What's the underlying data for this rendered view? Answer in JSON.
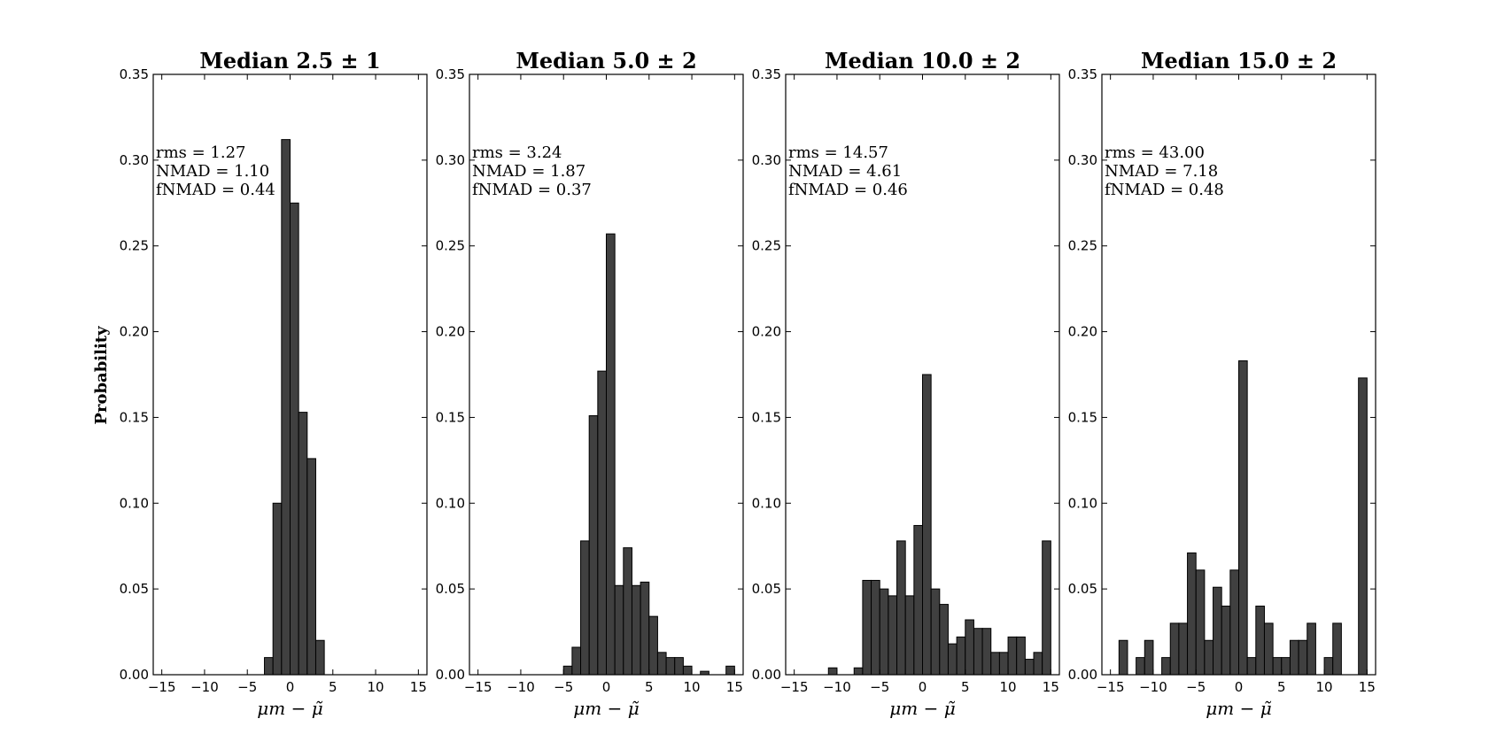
{
  "chart_data": {
    "type": "bar",
    "ylabel": "Probability",
    "xlabel": "μm − μ̃",
    "xlim": [
      -16,
      16
    ],
    "ylim": [
      0,
      0.35
    ],
    "xticks": [
      -15,
      -10,
      -5,
      0,
      5,
      10,
      15
    ],
    "xtick_labels": [
      "−15",
      "−10",
      "−5",
      "0",
      "5",
      "10",
      "15"
    ],
    "yticks": [
      0,
      0.05,
      0.1,
      0.15,
      0.2,
      0.25,
      0.3,
      0.35
    ],
    "ytick_labels": [
      "0.00",
      "0.05",
      "0.10",
      "0.15",
      "0.20",
      "0.25",
      "0.30",
      "0.35"
    ],
    "bar_color": "#404040",
    "bin_width": 1,
    "panels": [
      {
        "title": "Median 2.5 ± 1",
        "stats": [
          "rms = 1.27",
          "NMAD = 1.10",
          "fNMAD = 0.44"
        ],
        "bins": [
          [
            -3,
            0.01
          ],
          [
            -2,
            0.1
          ],
          [
            -1,
            0.312
          ],
          [
            0,
            0.275
          ],
          [
            1,
            0.153
          ],
          [
            2,
            0.126
          ],
          [
            3,
            0.02
          ]
        ]
      },
      {
        "title": "Median 5.0 ± 2",
        "stats": [
          "rms = 3.24",
          "NMAD = 1.87",
          "fNMAD = 0.37"
        ],
        "bins": [
          [
            -5,
            0.005
          ],
          [
            -4,
            0.016
          ],
          [
            -3,
            0.078
          ],
          [
            -2,
            0.151
          ],
          [
            -1,
            0.177
          ],
          [
            0,
            0.257
          ],
          [
            1,
            0.052
          ],
          [
            2,
            0.074
          ],
          [
            3,
            0.052
          ],
          [
            4,
            0.054
          ],
          [
            5,
            0.034
          ],
          [
            6,
            0.013
          ],
          [
            7,
            0.01
          ],
          [
            8,
            0.01
          ],
          [
            9,
            0.005
          ],
          [
            11,
            0.002
          ],
          [
            14,
            0.005
          ]
        ]
      },
      {
        "title": "Median 10.0 ± 2",
        "stats": [
          "rms = 14.57",
          "NMAD = 4.61",
          "fNMAD = 0.46"
        ],
        "bins": [
          [
            -11,
            0.004
          ],
          [
            -8,
            0.004
          ],
          [
            -7,
            0.055
          ],
          [
            -6,
            0.055
          ],
          [
            -5,
            0.05
          ],
          [
            -4,
            0.046
          ],
          [
            -3,
            0.078
          ],
          [
            -2,
            0.046
          ],
          [
            -1,
            0.087
          ],
          [
            0,
            0.175
          ],
          [
            1,
            0.05
          ],
          [
            2,
            0.041
          ],
          [
            3,
            0.018
          ],
          [
            4,
            0.022
          ],
          [
            5,
            0.032
          ],
          [
            6,
            0.027
          ],
          [
            7,
            0.027
          ],
          [
            8,
            0.013
          ],
          [
            9,
            0.013
          ],
          [
            10,
            0.022
          ],
          [
            11,
            0.022
          ],
          [
            12,
            0.009
          ],
          [
            13,
            0.013
          ],
          [
            14,
            0.078
          ]
        ]
      },
      {
        "title": "Median 15.0 ± 2",
        "stats": [
          "rms = 43.00",
          "NMAD = 7.18",
          "fNMAD = 0.48"
        ],
        "bins": [
          [
            -14,
            0.02
          ],
          [
            -12,
            0.01
          ],
          [
            -11,
            0.02
          ],
          [
            -9,
            0.01
          ],
          [
            -8,
            0.03
          ],
          [
            -7,
            0.03
          ],
          [
            -6,
            0.071
          ],
          [
            -5,
            0.061
          ],
          [
            -4,
            0.02
          ],
          [
            -3,
            0.051
          ],
          [
            -2,
            0.04
          ],
          [
            -1,
            0.061
          ],
          [
            0,
            0.183
          ],
          [
            1,
            0.01
          ],
          [
            2,
            0.04
          ],
          [
            3,
            0.03
          ],
          [
            4,
            0.01
          ],
          [
            5,
            0.01
          ],
          [
            6,
            0.02
          ],
          [
            7,
            0.02
          ],
          [
            8,
            0.03
          ],
          [
            10,
            0.01
          ],
          [
            11,
            0.03
          ],
          [
            14,
            0.173
          ]
        ]
      }
    ]
  }
}
